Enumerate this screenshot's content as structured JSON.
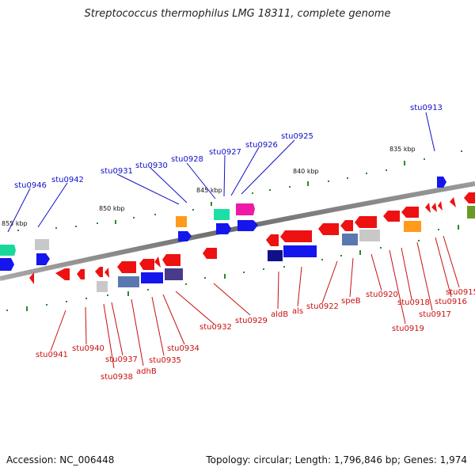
{
  "title": "Streptococcus thermophilus LMG 18311, complete genome",
  "accession_text": "Accession: NC_006448",
  "topology_text": "Topology: circular; Length: 1,796,846 bp; Genes: 1,974",
  "scale_labels": [
    "835 kbp",
    "840 kbp",
    "845 kbp",
    "850 kbp",
    "855 kbp"
  ],
  "upper_gene_labels": [
    "stu0913",
    "stu0925",
    "stu0926",
    "stu0927",
    "stu0928",
    "stu0930",
    "stu0931",
    "stu0942",
    "stu0946"
  ],
  "lower_gene_labels": [
    "stu0915",
    "stu0916",
    "stu0917",
    "stu0918",
    "stu0919",
    "stu0920",
    "speB",
    "stu0922",
    "als",
    "aldB",
    "stu0929",
    "stu0932",
    "stu0934",
    "stu0935",
    "adhB",
    "stu0937",
    "stu0938",
    "stu0940",
    "stu0941"
  ],
  "colors": {
    "upper_label": "#1010c8",
    "lower_label": "#c81010",
    "backbone": "#7a7a7a",
    "gene_red": "#ee1111",
    "gene_blue": "#1515ee",
    "gene_navy": "#10108a",
    "tick_green": "#2a8a2a"
  }
}
